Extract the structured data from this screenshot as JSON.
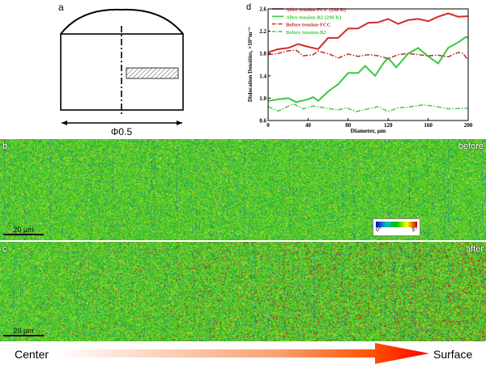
{
  "panel_a": {
    "label": "a",
    "dimension": "Φ0.5"
  },
  "panel_b": {
    "label": "b",
    "tag": "before",
    "scale_bar": "20 μm"
  },
  "panel_c": {
    "label": "c",
    "tag": "after",
    "scale_bar": "20 μm"
  },
  "colorbar": {
    "min": "0°",
    "max": "5°",
    "colors": [
      "#0000c0",
      "#00c000",
      "#ffff00",
      "#c00000"
    ]
  },
  "gradient_arrow": {
    "left": "Center",
    "right": "Surface",
    "color": "#ff1a00"
  },
  "chart_data": {
    "label": "d",
    "type": "line",
    "xlabel": "Diameter, μm",
    "ylabel": "Dislocation Densities, ×10¹⁵m⁻²",
    "xlim": [
      0,
      200
    ],
    "ylim": [
      0.6,
      2.6
    ],
    "xticks": [
      0,
      40,
      80,
      120,
      160,
      200
    ],
    "yticks": [
      0.6,
      1.0,
      1.4,
      1.8,
      2.2,
      2.6
    ],
    "legend_position": "top-left",
    "series": [
      {
        "name": "After tension-FCC (298 K)",
        "color": "#d42a2a",
        "style": "solid",
        "x": [
          0,
          10,
          20,
          30,
          40,
          50,
          60,
          70,
          80,
          90,
          100,
          110,
          120,
          130,
          140,
          150,
          160,
          170,
          180,
          190,
          200
        ],
        "y": [
          1.82,
          1.88,
          1.9,
          1.97,
          1.92,
          1.88,
          2.08,
          2.08,
          2.25,
          2.25,
          2.35,
          2.36,
          2.42,
          2.33,
          2.4,
          2.42,
          2.38,
          2.46,
          2.52,
          2.46,
          2.47
        ]
      },
      {
        "name": "After tension-B2 (298 K)",
        "color": "#3cc83c",
        "style": "solid",
        "x": [
          0,
          10,
          20,
          28,
          40,
          45,
          50,
          60,
          70,
          80,
          90,
          97,
          107,
          115,
          120,
          128,
          140,
          150,
          160,
          170,
          180,
          190,
          198,
          200
        ],
        "y": [
          0.95,
          0.98,
          1.0,
          0.93,
          0.98,
          1.02,
          0.95,
          1.12,
          1.25,
          1.45,
          1.45,
          1.58,
          1.4,
          1.62,
          1.72,
          1.55,
          1.8,
          1.9,
          1.75,
          1.62,
          1.9,
          2.0,
          2.1,
          2.08
        ]
      },
      {
        "name": "Before tension-FCC",
        "color": "#b8302a",
        "style": "dashdot",
        "x": [
          0,
          10,
          20,
          28,
          35,
          45,
          50,
          60,
          70,
          80,
          90,
          100,
          110,
          120,
          130,
          140,
          150,
          160,
          170,
          180,
          190,
          195,
          200
        ],
        "y": [
          1.78,
          1.8,
          1.85,
          1.86,
          1.76,
          1.78,
          1.84,
          1.8,
          1.72,
          1.79,
          1.75,
          1.78,
          1.76,
          1.71,
          1.78,
          1.8,
          1.78,
          1.76,
          1.77,
          1.74,
          1.82,
          1.8,
          1.68
        ]
      },
      {
        "name": "Before tension-B2",
        "color": "#4cc84c",
        "style": "dashdot",
        "x": [
          0,
          10,
          25,
          35,
          45,
          55,
          70,
          78,
          88,
          100,
          110,
          120,
          130,
          140,
          155,
          165,
          180,
          200
        ],
        "y": [
          0.85,
          0.77,
          0.9,
          0.81,
          0.86,
          0.83,
          0.79,
          0.83,
          0.76,
          0.81,
          0.85,
          0.76,
          0.83,
          0.84,
          0.88,
          0.86,
          0.81,
          0.82
        ]
      }
    ]
  }
}
